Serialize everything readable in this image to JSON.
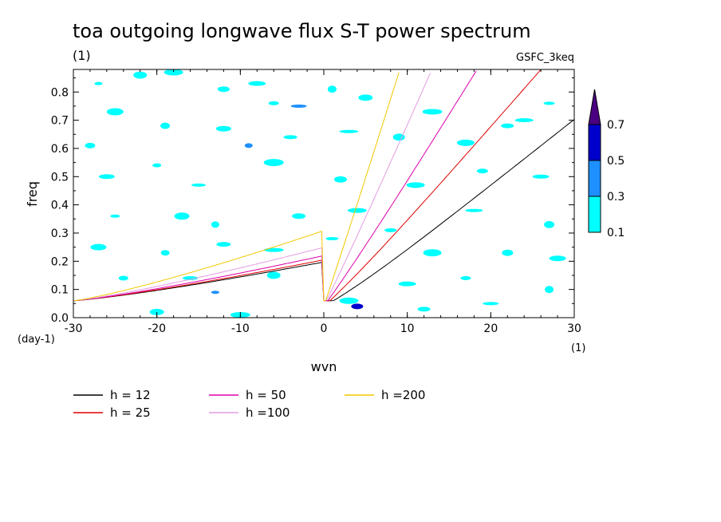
{
  "chart_data": {
    "type": "heatmap",
    "title": "toa outgoing longwave flux S-T power spectrum",
    "subtitle_left": "(1)",
    "subtitle_right": "GSFC_3keq",
    "xlabel": "wvn",
    "ylabel": "freq",
    "x_unit_label": "(1)",
    "y_unit_label": "(day-1)",
    "xlim": [
      -30,
      30
    ],
    "ylim": [
      0,
      0.88
    ],
    "x_ticks": [
      -30,
      -20,
      -10,
      0,
      10,
      20,
      30
    ],
    "x_tick_labels": [
      "-30",
      "-20",
      "-10",
      "0",
      "10",
      "20",
      "30"
    ],
    "y_ticks": [
      0,
      0.1,
      0.2,
      0.3,
      0.4,
      0.5,
      0.6,
      0.7,
      0.8
    ],
    "y_tick_labels": [
      "0.0",
      "0.1",
      "0.2",
      "0.3",
      "0.4",
      "0.5",
      "0.6",
      "0.7",
      "0.8"
    ],
    "colorbar": {
      "levels": [
        "0.1",
        "0.3",
        "0.5",
        "0.7"
      ],
      "colors": [
        "#00ffff",
        "#1e90ff",
        "#0000cd",
        "#4b0082"
      ]
    },
    "contour_patches": [
      {
        "x": -27,
        "y": 0.83,
        "level": 0
      },
      {
        "x": -22,
        "y": 0.86,
        "level": 0
      },
      {
        "x": -18,
        "y": 0.87,
        "level": 0
      },
      {
        "x": -12,
        "y": 0.81,
        "level": 0
      },
      {
        "x": -8,
        "y": 0.83,
        "level": 0
      },
      {
        "x": -6,
        "y": 0.76,
        "level": 0
      },
      {
        "x": -3,
        "y": 0.75,
        "level": 1
      },
      {
        "x": 1,
        "y": 0.81,
        "level": 0
      },
      {
        "x": 5,
        "y": 0.78,
        "level": 0
      },
      {
        "x": 13,
        "y": 0.73,
        "level": 0
      },
      {
        "x": 22,
        "y": 0.68,
        "level": 0
      },
      {
        "x": 24,
        "y": 0.7,
        "level": 0
      },
      {
        "x": 27,
        "y": 0.76,
        "level": 0
      },
      {
        "x": -25,
        "y": 0.73,
        "level": 0
      },
      {
        "x": -19,
        "y": 0.68,
        "level": 0
      },
      {
        "x": -12,
        "y": 0.67,
        "level": 0
      },
      {
        "x": -9,
        "y": 0.61,
        "level": 1
      },
      {
        "x": -4,
        "y": 0.64,
        "level": 0
      },
      {
        "x": 3,
        "y": 0.66,
        "level": 0
      },
      {
        "x": 9,
        "y": 0.64,
        "level": 0
      },
      {
        "x": 17,
        "y": 0.62,
        "level": 0
      },
      {
        "x": -28,
        "y": 0.61,
        "level": 0
      },
      {
        "x": -26,
        "y": 0.5,
        "level": 0
      },
      {
        "x": -20,
        "y": 0.54,
        "level": 0
      },
      {
        "x": -15,
        "y": 0.47,
        "level": 0
      },
      {
        "x": -6,
        "y": 0.55,
        "level": 0
      },
      {
        "x": 2,
        "y": 0.49,
        "level": 0
      },
      {
        "x": 11,
        "y": 0.47,
        "level": 0
      },
      {
        "x": 19,
        "y": 0.52,
        "level": 0
      },
      {
        "x": 26,
        "y": 0.5,
        "level": 0
      },
      {
        "x": -25,
        "y": 0.36,
        "level": 0
      },
      {
        "x": -17,
        "y": 0.36,
        "level": 0
      },
      {
        "x": -13,
        "y": 0.33,
        "level": 0
      },
      {
        "x": -3,
        "y": 0.36,
        "level": 0
      },
      {
        "x": 4,
        "y": 0.38,
        "level": 0
      },
      {
        "x": 8,
        "y": 0.31,
        "level": 0
      },
      {
        "x": 18,
        "y": 0.38,
        "level": 0
      },
      {
        "x": 27,
        "y": 0.33,
        "level": 0
      },
      {
        "x": -27,
        "y": 0.25,
        "level": 0
      },
      {
        "x": -19,
        "y": 0.23,
        "level": 0
      },
      {
        "x": -12,
        "y": 0.26,
        "level": 0
      },
      {
        "x": -6,
        "y": 0.24,
        "level": 0
      },
      {
        "x": 1,
        "y": 0.28,
        "level": 0
      },
      {
        "x": 13,
        "y": 0.23,
        "level": 0
      },
      {
        "x": 22,
        "y": 0.23,
        "level": 0
      },
      {
        "x": 28,
        "y": 0.21,
        "level": 0
      },
      {
        "x": -24,
        "y": 0.14,
        "level": 0
      },
      {
        "x": -16,
        "y": 0.14,
        "level": 0
      },
      {
        "x": -13,
        "y": 0.09,
        "level": 1
      },
      {
        "x": -6,
        "y": 0.15,
        "level": 0
      },
      {
        "x": 3,
        "y": 0.06,
        "level": 0
      },
      {
        "x": 4,
        "y": 0.04,
        "level": 2
      },
      {
        "x": 10,
        "y": 0.12,
        "level": 0
      },
      {
        "x": 17,
        "y": 0.14,
        "level": 0
      },
      {
        "x": 20,
        "y": 0.05,
        "level": 0
      },
      {
        "x": 27,
        "y": 0.1,
        "level": 0
      },
      {
        "x": -20,
        "y": 0.02,
        "level": 0
      },
      {
        "x": -10,
        "y": 0.01,
        "level": 0
      },
      {
        "x": 12,
        "y": 0.03,
        "level": 0
      }
    ],
    "series": [
      {
        "name": "h = 12",
        "color": "#000000",
        "h": 12
      },
      {
        "name": "h = 25",
        "color": "#dd0000",
        "h": 25
      },
      {
        "name": "h = 50",
        "color": "#dd00aa",
        "h": 50
      },
      {
        "name": "h =100",
        "color": "#e39be3",
        "h": 100
      },
      {
        "name": "h =200",
        "color": "#f0c800",
        "h": 200
      }
    ]
  }
}
